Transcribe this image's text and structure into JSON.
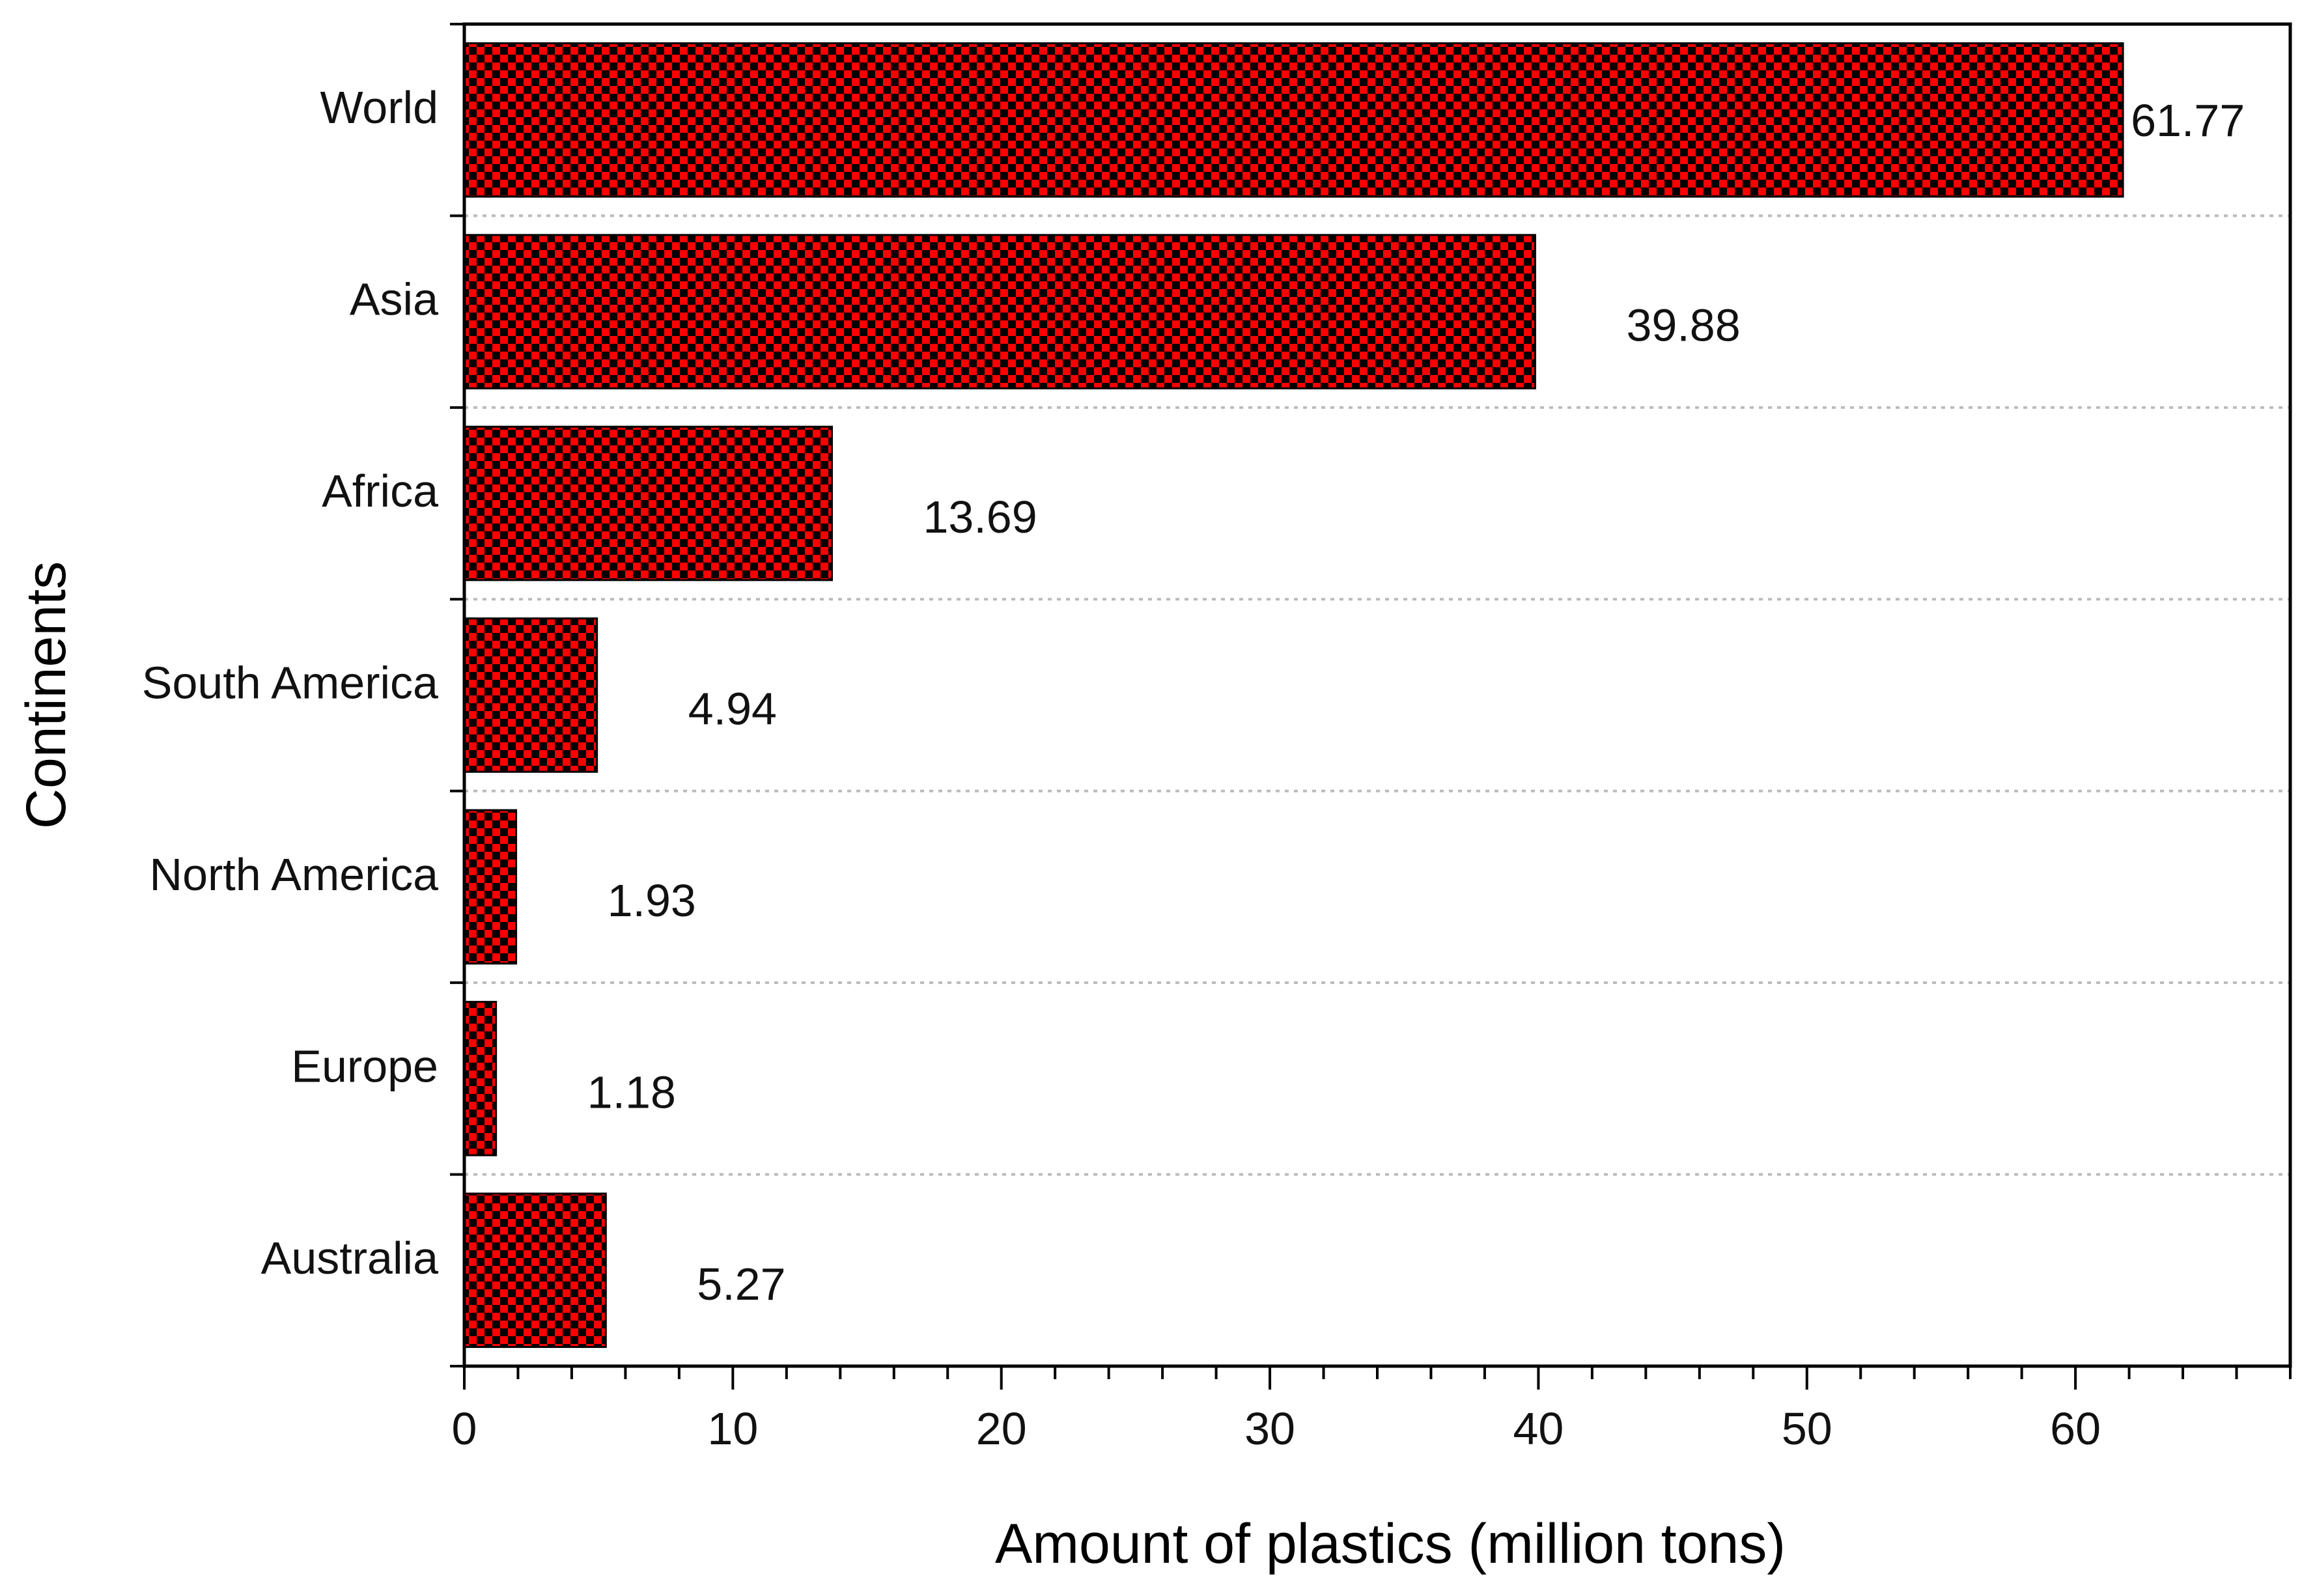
{
  "chart_data": {
    "type": "bar",
    "orientation": "horizontal",
    "title": "",
    "xlabel": "Amount of plastics (million tons)",
    "ylabel": "Continents",
    "categories": [
      "World",
      "Asia",
      "Africa",
      "South America",
      "North America",
      "Europe",
      "Australia"
    ],
    "values": [
      61.77,
      39.88,
      13.69,
      4.94,
      1.93,
      1.18,
      5.27
    ],
    "value_labels": [
      "61.77",
      "39.88",
      "13.69",
      "4.94",
      "1.93",
      "1.18",
      "5.27"
    ],
    "xlim": [
      0,
      68
    ],
    "xticks": [
      0,
      10,
      20,
      30,
      40,
      50,
      60
    ],
    "grid": "horizontal dotted",
    "legend": "none",
    "bar_pattern": "checkerboard",
    "colors": {
      "bar_fill": "#ff0000",
      "bar_pattern": "#000000",
      "axis": "#000000",
      "grid": "#bbbbbb"
    }
  }
}
